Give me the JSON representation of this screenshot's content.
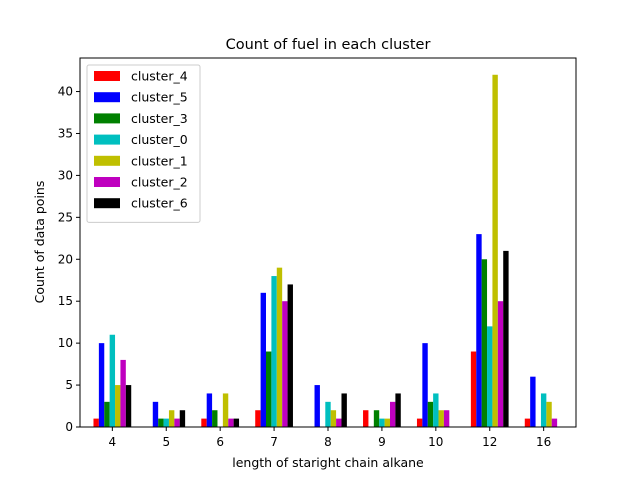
{
  "chart_data": {
    "type": "bar",
    "title": "Count of fuel in each cluster",
    "xlabel": "length of staright chain alkane",
    "ylabel": "Count of data poins",
    "categories": [
      "4",
      "5",
      "6",
      "7",
      "8",
      "9",
      "10",
      "12",
      "16"
    ],
    "ylim": [
      0,
      44
    ],
    "yticks": [
      0,
      5,
      10,
      15,
      20,
      25,
      30,
      35,
      40
    ],
    "grid": false,
    "legend_position": "top-left",
    "series": [
      {
        "name": "cluster_4",
        "color": "#ff0000",
        "values": [
          1,
          0,
          1,
          2,
          0,
          2,
          1,
          9,
          1
        ]
      },
      {
        "name": "cluster_5",
        "color": "#0000ff",
        "values": [
          10,
          3,
          4,
          16,
          5,
          0,
          10,
          23,
          6
        ]
      },
      {
        "name": "cluster_3",
        "color": "#008000",
        "values": [
          3,
          1,
          2,
          9,
          0,
          2,
          3,
          20,
          0
        ]
      },
      {
        "name": "cluster_0",
        "color": "#00bfbf",
        "values": [
          11,
          1,
          0,
          18,
          3,
          1,
          4,
          12,
          4
        ]
      },
      {
        "name": "cluster_1",
        "color": "#bfbf00",
        "values": [
          5,
          2,
          4,
          19,
          2,
          1,
          2,
          42,
          3
        ]
      },
      {
        "name": "cluster_2",
        "color": "#bf00bf",
        "values": [
          8,
          1,
          1,
          15,
          1,
          3,
          2,
          15,
          1
        ]
      },
      {
        "name": "cluster_6",
        "color": "#000000",
        "values": [
          5,
          2,
          1,
          17,
          4,
          4,
          0,
          21,
          0
        ]
      }
    ]
  }
}
